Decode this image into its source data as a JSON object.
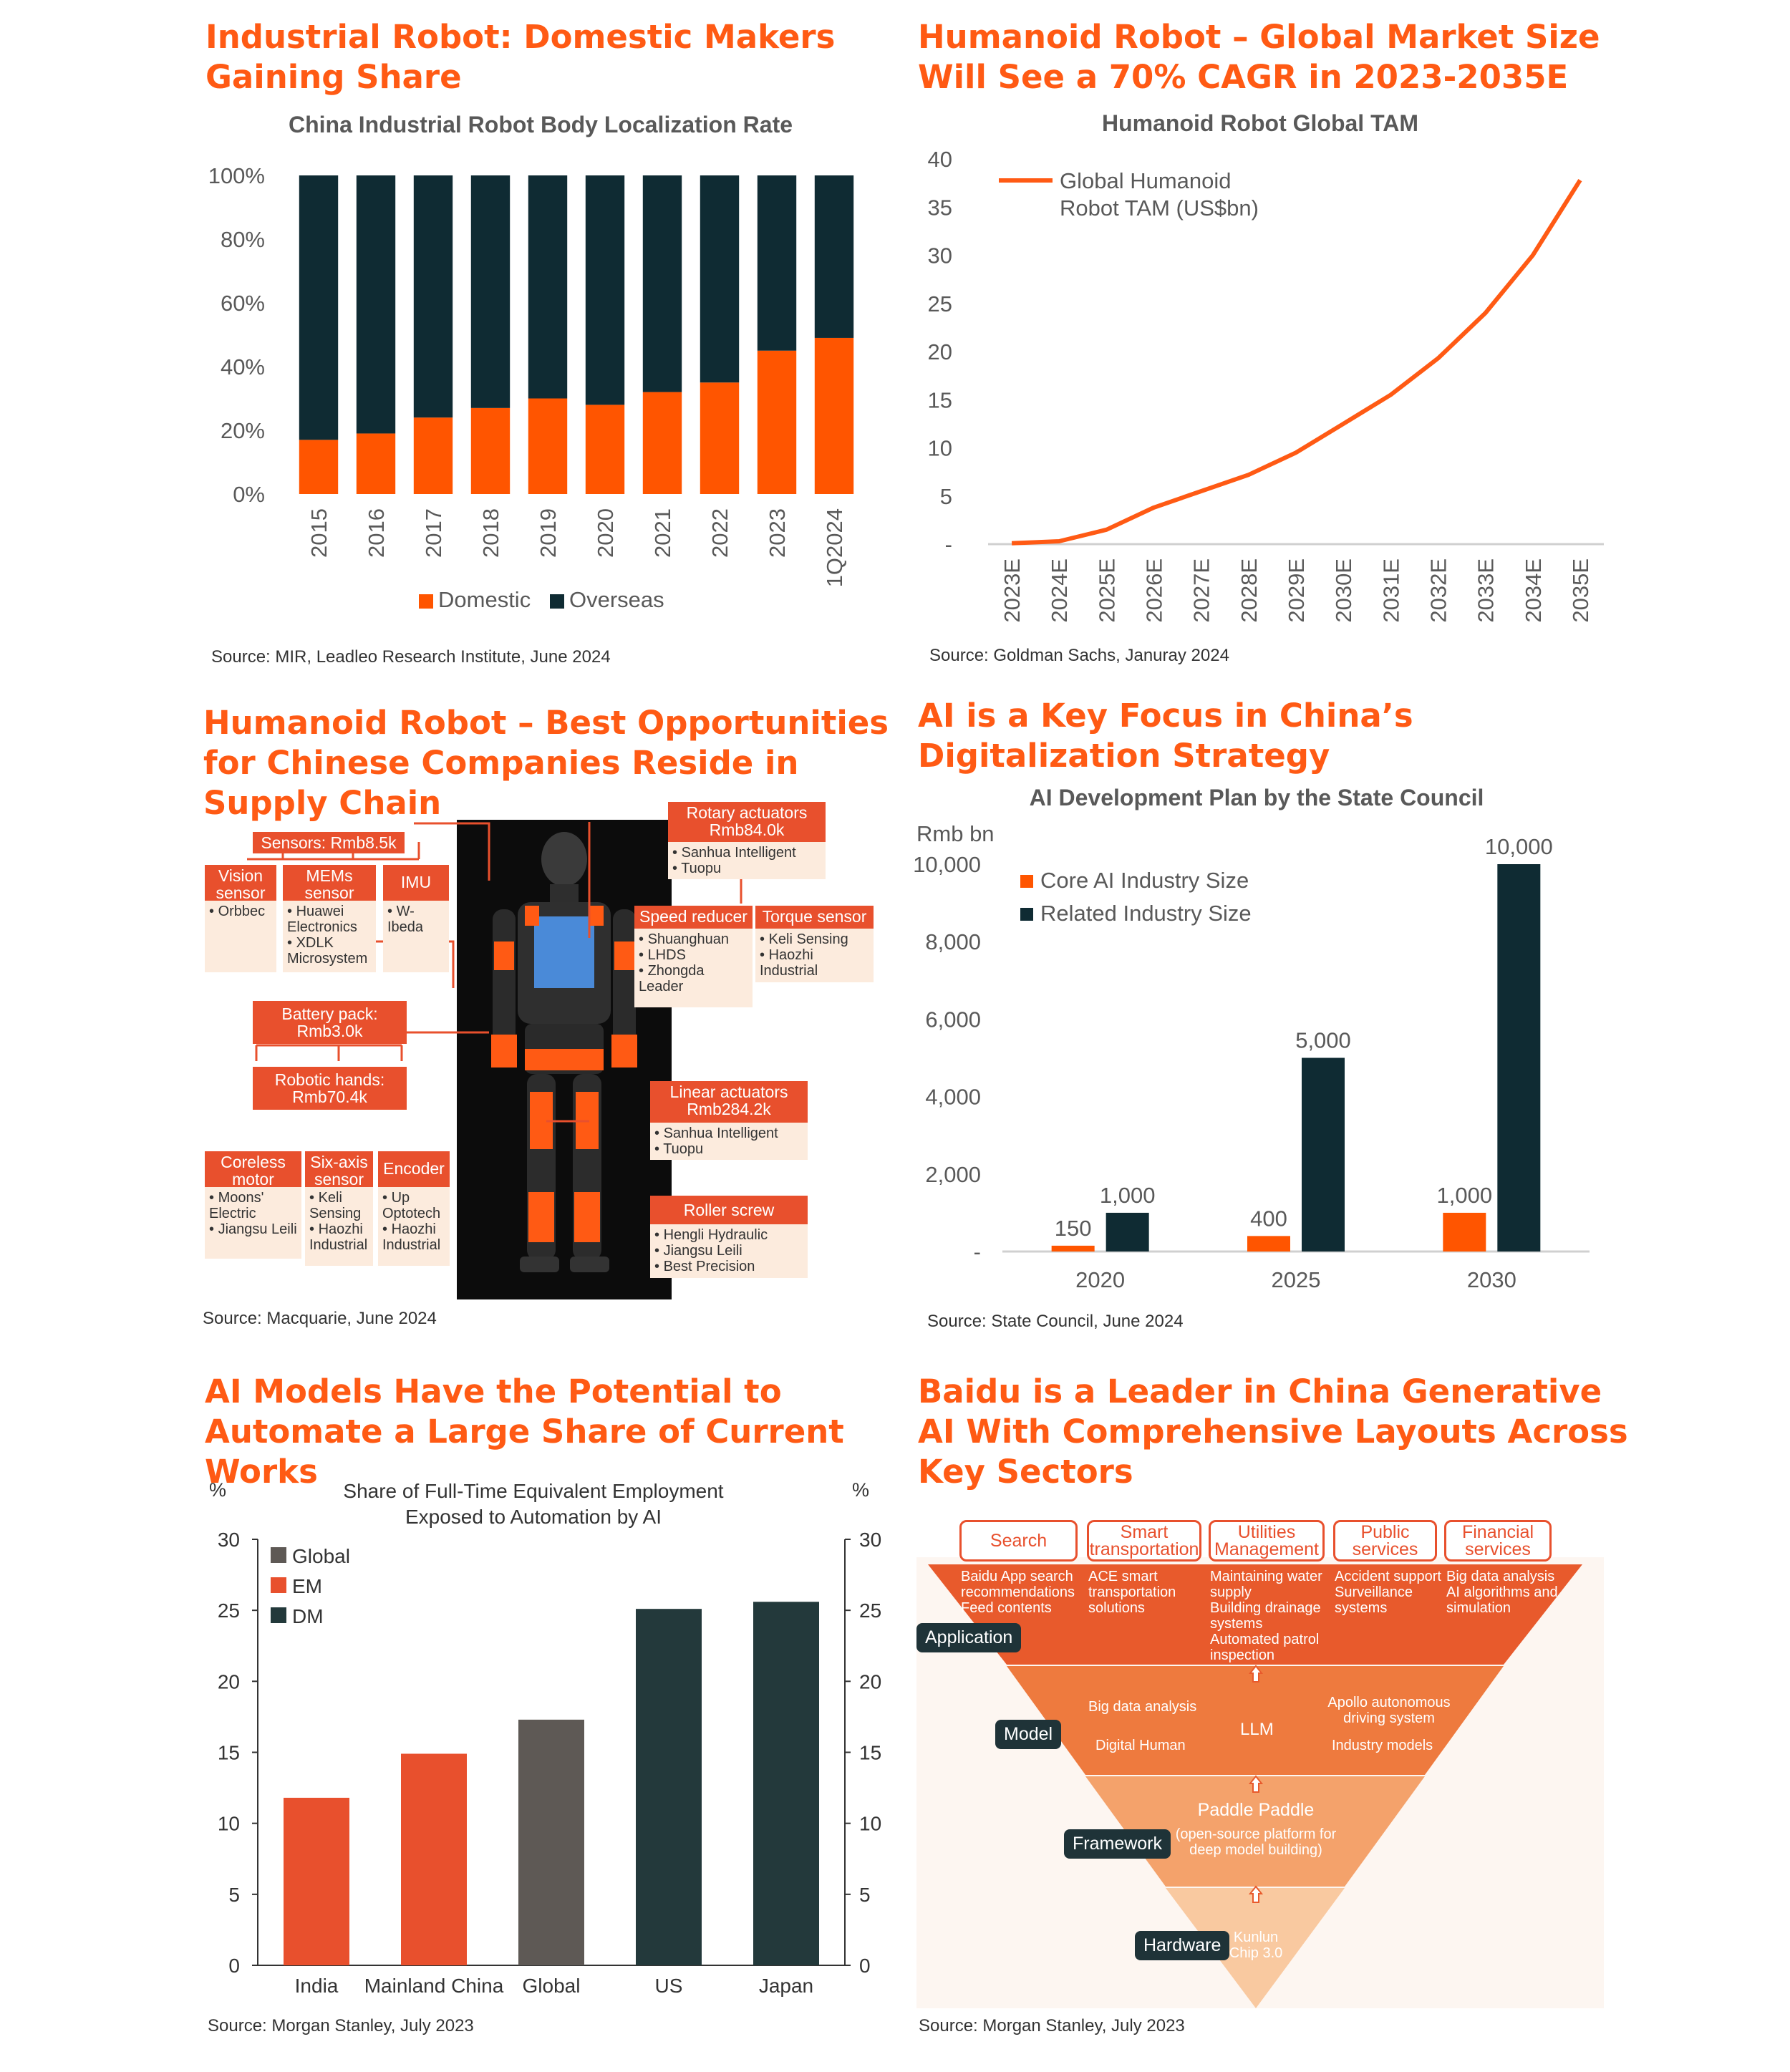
{
  "panels": {
    "p1": {
      "title": "Industrial Robot: Domestic Makers Gaining Share",
      "source": "Source: MIR, Leadleo Research Institute, June 2024"
    },
    "p2": {
      "title": "Humanoid Robot – Global Market Size Will See a 70% CAGR in 2023-2035E",
      "source": "Source: Goldman Sachs, Januray 2024"
    },
    "p3": {
      "title": "Humanoid Robot – Best Opportunities for Chinese Companies Reside in Supply Chain",
      "source": "Source: Macquarie, June 2024",
      "labels": {
        "sensors": "Sensors: Rmb8.5k",
        "vision": "Vision sensor",
        "mems": "MEMs sensor",
        "imu": "IMU",
        "battery": "Battery pack: Rmb3.0k",
        "hands": "Robotic hands: Rmb70.4k",
        "coreless": "Coreless motor",
        "sixaxis": "Six-axis sensor",
        "encoder": "Encoder",
        "rotary": "Rotary actuators Rmb84.0k",
        "speed": "Speed reducer",
        "torque": "Torque sensor",
        "linear": "Linear actuators Rmb284.2k",
        "roller": "Roller screw"
      },
      "lists": {
        "vision": [
          "Orbbec"
        ],
        "mems": [
          "Huawei Electronics",
          "XDLK Microsystem"
        ],
        "imu": [
          "W-Ibeda"
        ],
        "coreless": [
          "Moons' Electric",
          "Jiangsu Leili"
        ],
        "sixaxis": [
          "Keli Sensing",
          "Haozhi Industrial"
        ],
        "encoder": [
          "Up Optotech",
          "Haozhi Industrial"
        ],
        "rotary": [
          "Sanhua Intelligent",
          "Tuopu"
        ],
        "speed": [
          "Shuanghuan",
          "LHDS",
          "Zhongda Leader"
        ],
        "torque": [
          "Keli Sensing",
          "Haozhi Industrial"
        ],
        "linear": [
          "Sanhua Intelligent",
          "Tuopu"
        ],
        "roller": [
          "Hengli Hydraulic",
          "Jiangsu Leili",
          "Best Precision"
        ]
      }
    },
    "p4": {
      "title": "AI is a Key Focus in China’s Digitalization Strategy",
      "source": "Source: State Council, June 2024"
    },
    "p5": {
      "title": "AI Models Have the Potential to Automate a Large Share of Current Works",
      "source": "Source: Morgan Stanley, July 2023"
    },
    "p6": {
      "title": "Baidu is a Leader in China Generative AI With Comprehensive Layouts Across Key Sectors",
      "source": "Source: Morgan Stanley, July 2023",
      "sectors": [
        "Search",
        "Smart transportation",
        "Utilities Management",
        "Public services",
        "Financial services"
      ],
      "application_items": [
        [
          "Baidu App search recommendations",
          "Feed contents"
        ],
        [
          "ACE smart transportation solutions"
        ],
        [
          "Maintaining water supply",
          "Building drainage systems",
          "Automated patrol inspection"
        ],
        [
          "Accident support",
          "Surveillance systems"
        ],
        [
          "Big data analysis",
          "AI algorithms and simulation"
        ]
      ],
      "layers": [
        "Application",
        "Model",
        "Framework",
        "Hardware"
      ],
      "model_items": [
        "Big data analysis",
        "Digital Human",
        "LLM",
        "Apollo autonomous driving system",
        "Industry models"
      ],
      "framework_title": "Paddle Paddle",
      "framework_sub": "(open-source platform for deep model building)",
      "hardware_item": "Kunlun Chip 3.0"
    }
  },
  "chart_data": [
    {
      "type": "bar",
      "stacked": true,
      "title": "China Industrial Robot Body Localization Rate",
      "categories": [
        "2015",
        "2016",
        "2017",
        "2018",
        "2019",
        "2020",
        "2021",
        "2022",
        "2023",
        "1Q2024"
      ],
      "series": [
        {
          "name": "Domestic",
          "values": [
            17,
            19,
            24,
            27,
            30,
            28,
            32,
            35,
            45,
            49
          ],
          "color": "#FF5500"
        },
        {
          "name": "Overseas",
          "values": [
            83,
            81,
            76,
            73,
            70,
            72,
            68,
            65,
            55,
            51
          ],
          "color": "#0F2B33"
        }
      ],
      "yticks": [
        "0%",
        "20%",
        "40%",
        "60%",
        "80%",
        "100%"
      ],
      "ylim": [
        0,
        100
      ],
      "legend": "bottom"
    },
    {
      "type": "line",
      "title": "Humanoid Robot Global TAM",
      "categories": [
        "2023E",
        "2024E",
        "2025E",
        "2026E",
        "2027E",
        "2028E",
        "2029E",
        "2030E",
        "2031E",
        "2032E",
        "2033E",
        "2034E",
        "2035E"
      ],
      "series": [
        {
          "name": "Global Humanoid Robot TAM (US$bn)",
          "values": [
            0.1,
            0.3,
            1.5,
            3.8,
            5.5,
            7.2,
            9.5,
            12.5,
            15.5,
            19.3,
            24.0,
            30.0,
            37.8
          ],
          "color": "#FF5A14"
        }
      ],
      "yticks": [
        "-",
        "5",
        "10",
        "15",
        "20",
        "25",
        "30",
        "35",
        "40"
      ],
      "ylim": [
        0,
        40
      ],
      "legend": "top-left"
    },
    {
      "type": "bar",
      "title": "AI Development Plan by the State Council",
      "ylabel": "Rmb bn",
      "categories": [
        "2020",
        "2025",
        "2030"
      ],
      "series": [
        {
          "name": "Core AI Industry Size",
          "values": [
            150,
            400,
            1000
          ],
          "labels": [
            "150",
            "400",
            "1,000"
          ],
          "color": "#FF5500"
        },
        {
          "name": "Related Industry Size",
          "values": [
            1000,
            5000,
            10000
          ],
          "labels": [
            "1,000",
            "5,000",
            "10,000"
          ],
          "color": "#0F2B33"
        }
      ],
      "yticks": [
        "-",
        "2,000",
        "4,000",
        "6,000",
        "8,000",
        "10,000"
      ],
      "ylim": [
        0,
        10000
      ],
      "legend": "top-left"
    },
    {
      "type": "bar",
      "title": "Share of Full-Time Equivalent Employment Exposed to Automation by AI",
      "ylabel": "%",
      "categories": [
        "India",
        "Mainland China",
        "Global",
        "US",
        "Japan"
      ],
      "values": [
        11.8,
        14.9,
        17.3,
        25.1,
        25.6
      ],
      "groups": [
        "EM",
        "EM",
        "Global",
        "DM",
        "DM"
      ],
      "legend_entries": [
        {
          "name": "Global",
          "color": "#5E5955"
        },
        {
          "name": "EM",
          "color": "#E8502D"
        },
        {
          "name": "DM",
          "color": "#23393B"
        }
      ],
      "yticks": [
        "0",
        "5",
        "10",
        "15",
        "20",
        "25",
        "30"
      ],
      "ylim": [
        0,
        30
      ],
      "legend": "top-left"
    }
  ]
}
